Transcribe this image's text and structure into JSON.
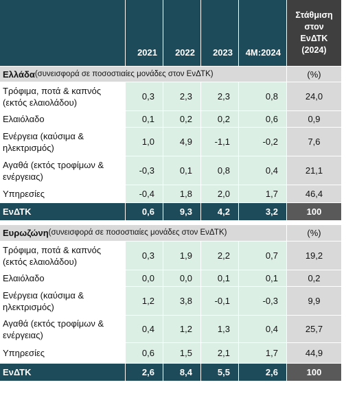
{
  "header": {
    "columns": [
      "2021",
      "2022",
      "2023",
      "4M:2024"
    ],
    "weight_lines": [
      "Στάθμιση",
      "στον",
      "ΕνΔΤΚ",
      "(2024)"
    ]
  },
  "sections": [
    {
      "name": "Ελλάδα",
      "note": "(συνεισφορά σε ποσοστιαίες μονάδες στον ΕνΔΤΚ)",
      "unit": "(%)",
      "rows": [
        {
          "label": "Τρόφιμα, ποτά & καπνός (εκτός ελαιολάδου)",
          "values": [
            "0,3",
            "2,3",
            "2,3",
            "0,8"
          ],
          "weight": "24,0"
        },
        {
          "label": "Ελαιόλαδο",
          "values": [
            "0,1",
            "0,2",
            "0,2",
            "0,6"
          ],
          "weight": "0,9"
        },
        {
          "label": "Ενέργεια (καύσιμα & ηλεκτρισμός)",
          "values": [
            "1,0",
            "4,9",
            "-1,1",
            "-0,2"
          ],
          "weight": "7,6"
        },
        {
          "label": "Αγαθά (εκτός τροφίμων & ενέργειας)",
          "values": [
            "-0,3",
            "0,1",
            "0,8",
            "0,4"
          ],
          "weight": "21,1"
        },
        {
          "label": "Υπηρεσίες",
          "values": [
            "-0,4",
            "1,8",
            "2,0",
            "1,7"
          ],
          "weight": "46,4"
        }
      ],
      "total": {
        "label": "ΕνΔΤΚ",
        "values": [
          "0,6",
          "9,3",
          "4,2",
          "3,2"
        ],
        "weight": "100"
      }
    },
    {
      "name": "Ευρωζώνη",
      "note": "(συνεισφορά σε ποσοστιαίες μονάδες στον ΕνΔΤΚ)",
      "unit": "(%)",
      "rows": [
        {
          "label": "Τρόφιμα, ποτά & καπνός (εκτός ελαιολάδου)",
          "values": [
            "0,3",
            "1,9",
            "2,2",
            "0,7"
          ],
          "weight": "19,2"
        },
        {
          "label": "Ελαιόλαδο",
          "values": [
            "0,0",
            "0,0",
            "0,1",
            "0,1"
          ],
          "weight": "0,2"
        },
        {
          "label": "Ενέργεια (καύσιμα & ηλεκτρισμός)",
          "values": [
            "1,2",
            "3,8",
            "-0,1",
            "-0,3"
          ],
          "weight": "9,9"
        },
        {
          "label": "Αγαθά (εκτός τροφίμων & ενέργειας)",
          "values": [
            "0,4",
            "1,2",
            "1,3",
            "0,4"
          ],
          "weight": "25,7"
        },
        {
          "label": "Υπηρεσίες",
          "values": [
            "0,6",
            "1,5",
            "2,1",
            "1,7"
          ],
          "weight": "44,9"
        }
      ],
      "total": {
        "label": "ΕνΔΤΚ",
        "values": [
          "2,6",
          "8,4",
          "5,5",
          "2,6"
        ],
        "weight": "100"
      }
    }
  ]
}
